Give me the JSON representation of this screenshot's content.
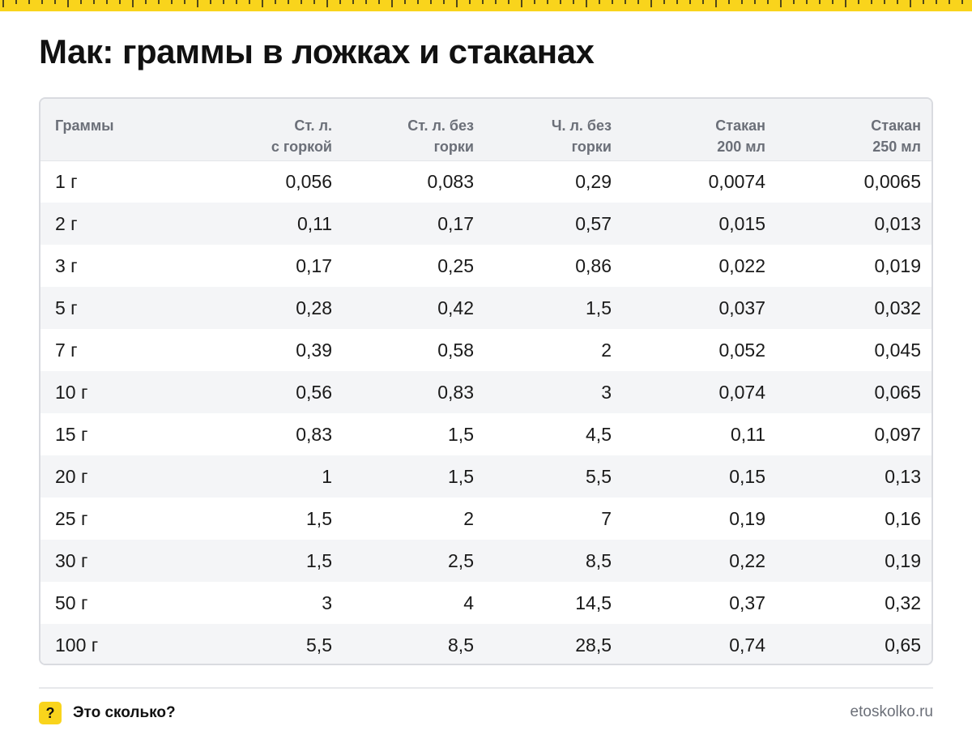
{
  "title": "Мак: граммы в ложках и стаканах",
  "colors": {
    "accent": "#f9d41c",
    "header_bg": "#f2f3f5",
    "stripe_bg": "#f4f5f7",
    "muted_text": "#6b6f78"
  },
  "table": {
    "headers": [
      [
        "Граммы",
        ""
      ],
      [
        "Ст. л.",
        "с горкой"
      ],
      [
        "Ст. л. без",
        "горки"
      ],
      [
        "Ч. л. без",
        "горки"
      ],
      [
        "Стакан",
        "200 мл"
      ],
      [
        "Стакан",
        "250 мл"
      ]
    ],
    "rows": [
      [
        "1 г",
        "0,056",
        "0,083",
        "0,29",
        "0,0074",
        "0,0065"
      ],
      [
        "2 г",
        "0,11",
        "0,17",
        "0,57",
        "0,015",
        "0,013"
      ],
      [
        "3 г",
        "0,17",
        "0,25",
        "0,86",
        "0,022",
        "0,019"
      ],
      [
        "5 г",
        "0,28",
        "0,42",
        "1,5",
        "0,037",
        "0,032"
      ],
      [
        "7 г",
        "0,39",
        "0,58",
        "2",
        "0,052",
        "0,045"
      ],
      [
        "10 г",
        "0,56",
        "0,83",
        "3",
        "0,074",
        "0,065"
      ],
      [
        "15 г",
        "0,83",
        "1,5",
        "4,5",
        "0,11",
        "0,097"
      ],
      [
        "20 г",
        "1",
        "1,5",
        "5,5",
        "0,15",
        "0,13"
      ],
      [
        "25 г",
        "1,5",
        "2",
        "7",
        "0,19",
        "0,16"
      ],
      [
        "30 г",
        "1,5",
        "2,5",
        "8,5",
        "0,22",
        "0,19"
      ],
      [
        "50 г",
        "3",
        "4",
        "14,5",
        "0,37",
        "0,32"
      ],
      [
        "100 г",
        "5,5",
        "8,5",
        "28,5",
        "0,74",
        "0,65"
      ]
    ]
  },
  "footer": {
    "badge_glyph": "?",
    "brand": "Это сколько?",
    "site": "etoskolko.ru"
  }
}
